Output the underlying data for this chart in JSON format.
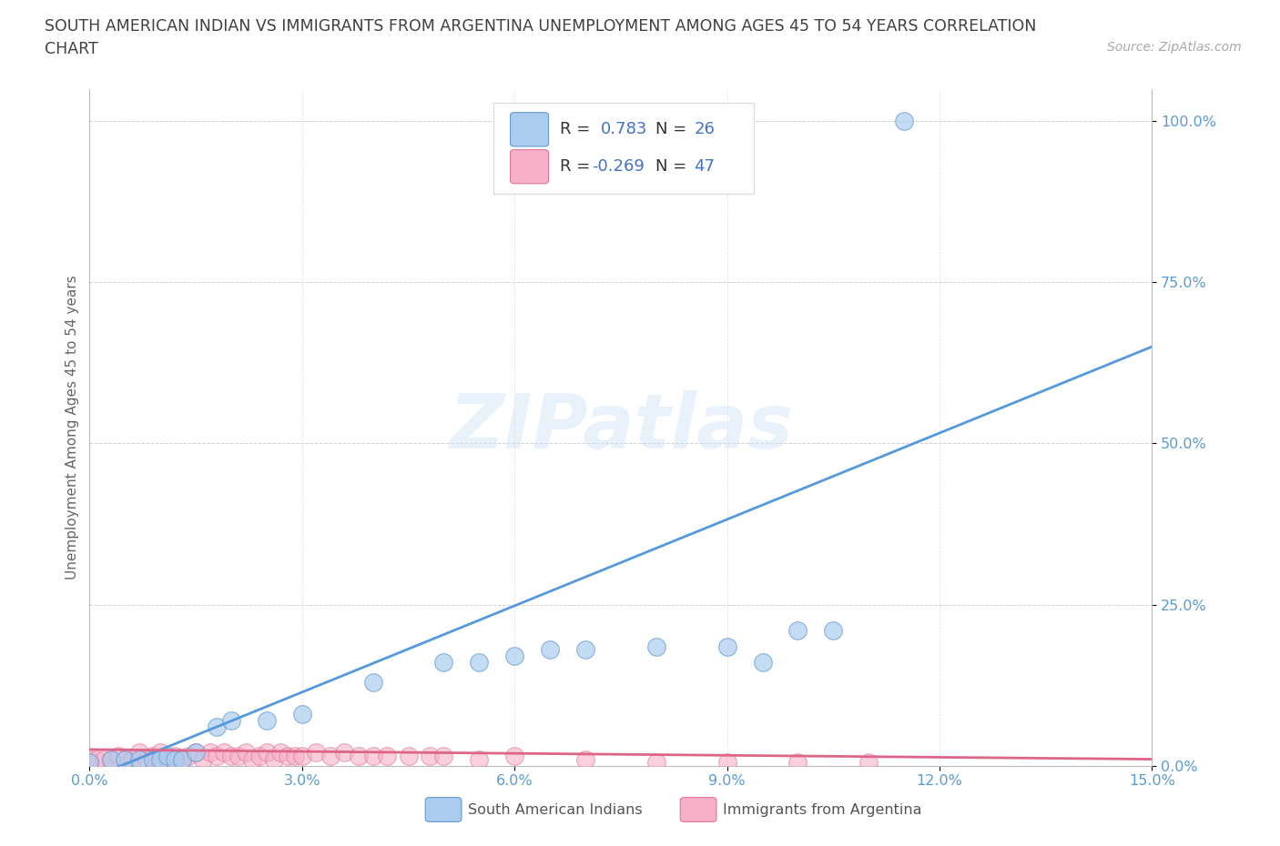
{
  "title_line1": "SOUTH AMERICAN INDIAN VS IMMIGRANTS FROM ARGENTINA UNEMPLOYMENT AMONG AGES 45 TO 54 YEARS CORRELATION",
  "title_line2": "CHART",
  "source": "Source: ZipAtlas.com",
  "ylabel": "Unemployment Among Ages 45 to 54 years",
  "xlim": [
    0.0,
    0.15
  ],
  "ylim": [
    0.0,
    1.05
  ],
  "xticks": [
    0.0,
    0.03,
    0.06,
    0.09,
    0.12,
    0.15
  ],
  "xticklabels": [
    "0.0%",
    "3.0%",
    "6.0%",
    "9.0%",
    "12.0%",
    "15.0%"
  ],
  "yticks": [
    0.0,
    0.25,
    0.5,
    0.75,
    1.0
  ],
  "yticklabels": [
    "0.0%",
    "25.0%",
    "50.0%",
    "75.0%",
    "100.0%"
  ],
  "series1_name": "South American Indians",
  "series1_color": "#aaccee",
  "series1_edge": "#6699cc",
  "series1_line_color": "#5599dd",
  "series1_R": "0.783",
  "series1_N": "26",
  "series2_name": "Immigrants from Argentina",
  "series2_color": "#f8b0c8",
  "series2_edge": "#dd7799",
  "series2_line_color": "#dd6688",
  "series2_R": "-0.269",
  "series2_N": "47",
  "line1_x0": 0.0,
  "line1_y0": -0.02,
  "line1_x1": 0.15,
  "line1_y1": 0.65,
  "line2_x0": 0.0,
  "line2_y0": 0.025,
  "line2_x1": 0.15,
  "line2_y1": 0.01,
  "series1_x": [
    0.0,
    0.003,
    0.005,
    0.007,
    0.009,
    0.01,
    0.011,
    0.012,
    0.013,
    0.015,
    0.018,
    0.02,
    0.025,
    0.03,
    0.04,
    0.05,
    0.055,
    0.06,
    0.065,
    0.07,
    0.08,
    0.09,
    0.095,
    0.1,
    0.105,
    0.115
  ],
  "series1_y": [
    0.005,
    0.01,
    0.01,
    0.01,
    0.01,
    0.01,
    0.015,
    0.01,
    0.01,
    0.02,
    0.06,
    0.07,
    0.07,
    0.08,
    0.13,
    0.16,
    0.16,
    0.17,
    0.18,
    0.18,
    0.185,
    0.185,
    0.16,
    0.21,
    0.21,
    1.0
  ],
  "series2_x": [
    0.0,
    0.001,
    0.002,
    0.003,
    0.004,
    0.005,
    0.006,
    0.007,
    0.008,
    0.009,
    0.01,
    0.011,
    0.012,
    0.013,
    0.014,
    0.015,
    0.016,
    0.017,
    0.018,
    0.019,
    0.02,
    0.021,
    0.022,
    0.023,
    0.024,
    0.025,
    0.026,
    0.027,
    0.028,
    0.029,
    0.03,
    0.032,
    0.034,
    0.036,
    0.038,
    0.04,
    0.042,
    0.045,
    0.048,
    0.05,
    0.055,
    0.06,
    0.07,
    0.08,
    0.09,
    0.1,
    0.11
  ],
  "series2_y": [
    0.01,
    0.01,
    0.01,
    0.01,
    0.015,
    0.01,
    0.01,
    0.02,
    0.01,
    0.015,
    0.02,
    0.01,
    0.015,
    0.01,
    0.015,
    0.02,
    0.01,
    0.02,
    0.015,
    0.02,
    0.015,
    0.015,
    0.02,
    0.01,
    0.015,
    0.02,
    0.01,
    0.02,
    0.015,
    0.015,
    0.015,
    0.02,
    0.015,
    0.02,
    0.015,
    0.015,
    0.015,
    0.015,
    0.015,
    0.015,
    0.01,
    0.015,
    0.01,
    0.005,
    0.005,
    0.005,
    0.005
  ],
  "watermark_text": "ZIPatlas",
  "bg_color": "#ffffff",
  "grid_color": "#cccccc",
  "tick_color": "#5b9bd5",
  "title_color": "#404040",
  "source_color": "#aaaaaa",
  "legend_text_color": "#333333",
  "legend_value_color": "#4472c4"
}
